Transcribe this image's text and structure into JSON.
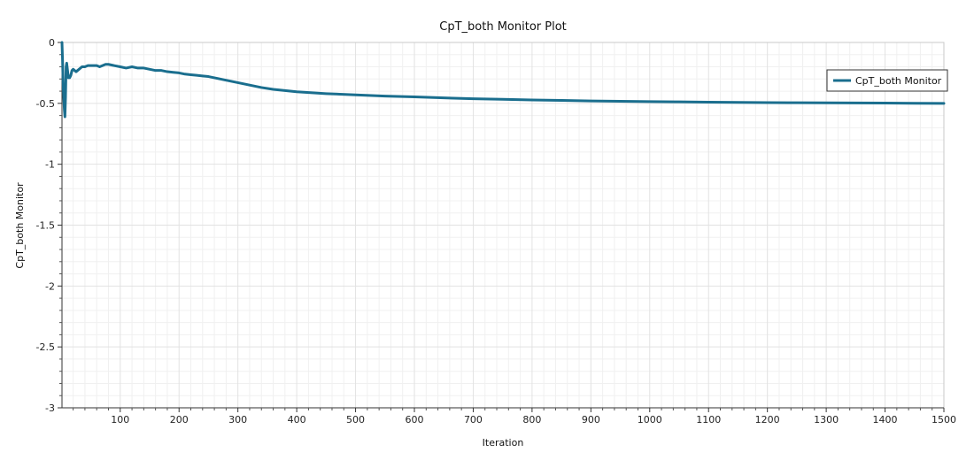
{
  "chart_data": {
    "type": "line",
    "title": "CpT_both Monitor Plot",
    "xlabel": "Iteration",
    "ylabel": "CpT_both Monitor",
    "xlim": [
      1,
      1500
    ],
    "ylim": [
      -3,
      0
    ],
    "x_ticks": [
      100,
      200,
      300,
      400,
      500,
      600,
      700,
      800,
      900,
      1000,
      1100,
      1200,
      1300,
      1400,
      1500
    ],
    "x_tick_labels": [
      "100",
      "200",
      "300",
      "400",
      "500",
      "600",
      "700",
      "800",
      "900",
      "1000",
      "1100",
      "1200",
      "1300",
      "1400",
      "1500"
    ],
    "y_ticks": [
      0,
      -0.5,
      -1,
      -1.5,
      -2,
      -2.5,
      -3
    ],
    "y_tick_labels": [
      "0",
      "-0.5",
      "-1",
      "-1.5",
      "-2",
      "-2.5",
      "-3"
    ],
    "grid": true,
    "legend_position": "top-right",
    "series": [
      {
        "name": "CpT_both Monitor",
        "color": "#1a6e8e",
        "x": [
          1,
          2,
          3,
          4,
          5,
          6,
          7,
          8,
          9,
          10,
          12,
          14,
          16,
          18,
          20,
          25,
          30,
          35,
          40,
          45,
          50,
          55,
          60,
          65,
          70,
          75,
          80,
          90,
          100,
          110,
          120,
          130,
          135,
          140,
          150,
          160,
          170,
          180,
          190,
          200,
          210,
          220,
          230,
          240,
          250,
          260,
          270,
          280,
          290,
          300,
          320,
          340,
          360,
          380,
          400,
          450,
          500,
          550,
          600,
          650,
          700,
          750,
          800,
          850,
          900,
          950,
          1000,
          1050,
          1100,
          1150,
          1200,
          1250,
          1300,
          1350,
          1400,
          1450,
          1500
        ],
        "values": [
          0,
          -0.15,
          -0.35,
          -0.45,
          -0.55,
          -0.61,
          -0.45,
          -0.2,
          -0.17,
          -0.21,
          -0.29,
          -0.29,
          -0.27,
          -0.23,
          -0.22,
          -0.24,
          -0.22,
          -0.2,
          -0.2,
          -0.19,
          -0.19,
          -0.19,
          -0.19,
          -0.2,
          -0.19,
          -0.18,
          -0.18,
          -0.19,
          -0.2,
          -0.21,
          -0.2,
          -0.21,
          -0.21,
          -0.21,
          -0.22,
          -0.23,
          -0.23,
          -0.24,
          -0.245,
          -0.25,
          -0.26,
          -0.265,
          -0.27,
          -0.275,
          -0.28,
          -0.29,
          -0.3,
          -0.31,
          -0.32,
          -0.33,
          -0.35,
          -0.37,
          -0.385,
          -0.395,
          -0.405,
          -0.42,
          -0.43,
          -0.44,
          -0.447,
          -0.455,
          -0.462,
          -0.467,
          -0.472,
          -0.476,
          -0.48,
          -0.483,
          -0.486,
          -0.488,
          -0.49,
          -0.492,
          -0.494,
          -0.495,
          -0.496,
          -0.497,
          -0.498,
          -0.499,
          -0.5
        ]
      }
    ]
  }
}
